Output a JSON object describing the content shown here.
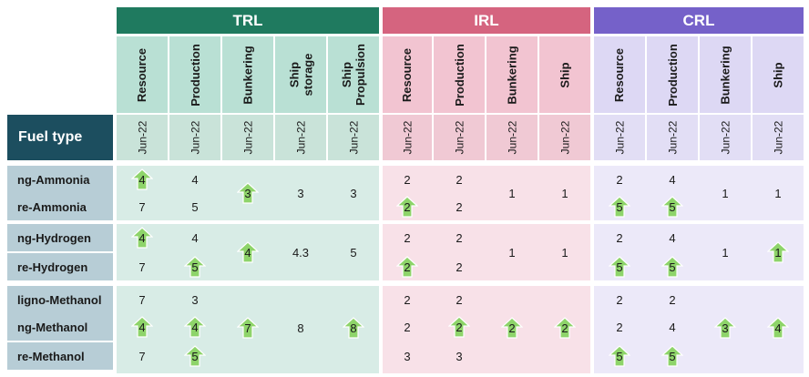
{
  "groups": [
    {
      "label": "TRL",
      "color": "#1f7a5f"
    },
    {
      "label": "IRL",
      "color": "#d5647f"
    },
    {
      "label": "CRL",
      "color": "#7561c9"
    }
  ],
  "columns": [
    {
      "label": "Resource"
    },
    {
      "label": "Production"
    },
    {
      "label": "Bunkering"
    },
    {
      "label": "Ship storage"
    },
    {
      "label": "Ship Propulsion"
    },
    {
      "label": "Resource"
    },
    {
      "label": "Production"
    },
    {
      "label": "Bunkering"
    },
    {
      "label": "Ship"
    },
    {
      "label": "Resource"
    },
    {
      "label": "Production"
    },
    {
      "label": "Bunkering"
    },
    {
      "label": "Ship"
    }
  ],
  "date_label": "Jun-22",
  "fuel_header": "Fuel type",
  "fuels": [
    "ng-Ammonia",
    "re-Ammonia",
    "ng-Hydrogen",
    "re-Hydrogen",
    "ligno-Methanol",
    "ng-Methanol",
    "re-Methanol"
  ],
  "arrow_color": "#8ed46a",
  "cells": [
    {
      "v": "4",
      "up": true
    },
    {
      "v": "4",
      "up": false
    },
    {
      "v": "3",
      "up": true
    },
    {
      "v": "3",
      "up": false
    },
    {
      "v": "3",
      "up": false
    },
    {
      "v": "2",
      "up": false
    },
    {
      "v": "2",
      "up": false
    },
    {
      "v": "1",
      "up": false
    },
    {
      "v": "1",
      "up": false
    },
    {
      "v": "2",
      "up": false
    },
    {
      "v": "4",
      "up": false
    },
    {
      "v": "1",
      "up": false
    },
    {
      "v": "1",
      "up": false
    },
    {
      "v": "7",
      "up": false
    },
    {
      "v": "5",
      "up": false
    },
    {
      "v": "2",
      "up": true
    },
    {
      "v": "2",
      "up": false
    },
    {
      "v": "5",
      "up": true
    },
    {
      "v": "5",
      "up": true
    },
    {
      "v": "4",
      "up": true
    },
    {
      "v": "4",
      "up": false
    },
    {
      "v": "4",
      "up": true
    },
    {
      "v": "4.3",
      "up": false
    },
    {
      "v": "5",
      "up": false
    },
    {
      "v": "2",
      "up": false
    },
    {
      "v": "2",
      "up": false
    },
    {
      "v": "1",
      "up": false
    },
    {
      "v": "1",
      "up": false
    },
    {
      "v": "2",
      "up": false
    },
    {
      "v": "4",
      "up": false
    },
    {
      "v": "1",
      "up": false
    },
    {
      "v": "1",
      "up": true
    },
    {
      "v": "7",
      "up": false
    },
    {
      "v": "5",
      "up": true
    },
    {
      "v": "2",
      "up": true
    },
    {
      "v": "2",
      "up": false
    },
    {
      "v": "5",
      "up": true
    },
    {
      "v": "5",
      "up": true
    },
    {
      "v": "7",
      "up": false
    },
    {
      "v": "3",
      "up": false
    },
    {
      "v": "2",
      "up": false
    },
    {
      "v": "2",
      "up": false
    },
    {
      "v": "2",
      "up": false
    },
    {
      "v": "2",
      "up": false
    },
    {
      "v": "4",
      "up": true
    },
    {
      "v": "4",
      "up": true
    },
    {
      "v": "7",
      "up": true
    },
    {
      "v": "8",
      "up": false
    },
    {
      "v": "8",
      "up": true
    },
    {
      "v": "2",
      "up": false
    },
    {
      "v": "2",
      "up": true
    },
    {
      "v": "2",
      "up": true
    },
    {
      "v": "2",
      "up": true
    },
    {
      "v": "2",
      "up": false
    },
    {
      "v": "4",
      "up": false
    },
    {
      "v": "3",
      "up": true
    },
    {
      "v": "4",
      "up": true
    },
    {
      "v": "7",
      "up": false
    },
    {
      "v": "5",
      "up": true
    },
    {
      "v": "3",
      "up": false
    },
    {
      "v": "3",
      "up": false
    },
    {
      "v": "5",
      "up": true
    },
    {
      "v": "5",
      "up": true
    }
  ]
}
